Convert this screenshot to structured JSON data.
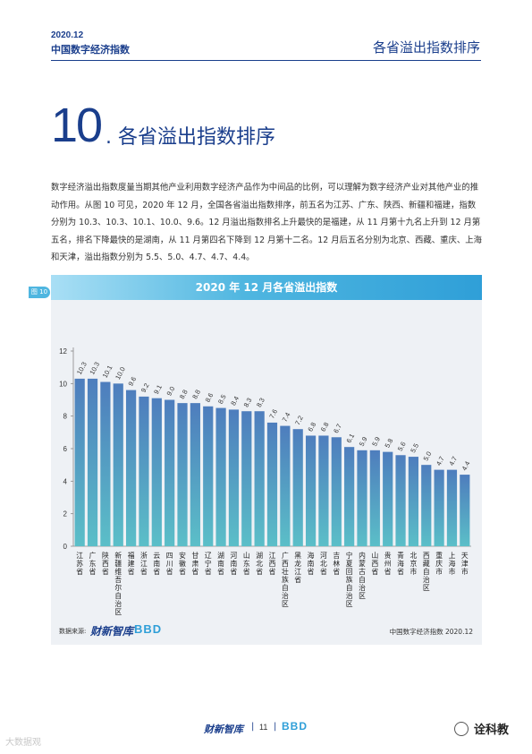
{
  "header": {
    "date": "2020.12",
    "report": "中国数字经济指数",
    "section": "各省溢出指数排序"
  },
  "title": {
    "number": "10",
    "text": ". 各省溢出指数排序"
  },
  "intro": "数字经济溢出指数度量当期其他产业利用数字经济产品作为中间品的比例，可以理解为数字经济产业对其他产业的推动作用。从图 10 可见，2020 年 12 月，全国各省溢出指数排序，前五名为江苏、广东、陕西、新疆和福建，指数分别为 10.3、10.3、10.1、10.0、9.6。12 月溢出指数排名上升最快的是福建，从 11 月第十九名上升到 12 月第五名，排名下降最快的是湖南，从 11 月第四名下降到 12 月第十二名。12 月后五名分别为北京、西藏、重庆、上海和天津，溢出指数分别为 5.5、5.0、4.7、4.7、4.4。",
  "figure": {
    "label": "图 10",
    "title": "2020 年 12 月各省溢出指数"
  },
  "chart_data": {
    "type": "bar",
    "title": "2020 年 12 月各省溢出指数",
    "categories": [
      "江苏省",
      "广东省",
      "陕西省",
      "新疆维吾尔自治区",
      "福建省",
      "浙江省",
      "云南省",
      "四川省",
      "安徽省",
      "甘肃省",
      "辽宁省",
      "湖南省",
      "河南省",
      "山东省",
      "湖北省",
      "江西省",
      "广西壮族自治区",
      "黑龙江省",
      "海南省",
      "河北省",
      "吉林省",
      "宁夏回族自治区",
      "内蒙古自治区",
      "山西省",
      "贵州省",
      "青海省",
      "北京市",
      "西藏自治区",
      "重庆市",
      "上海市",
      "天津市"
    ],
    "values": [
      10.3,
      10.3,
      10.1,
      10.0,
      9.6,
      9.2,
      9.1,
      9.0,
      8.8,
      8.8,
      8.6,
      8.5,
      8.4,
      8.3,
      8.3,
      7.6,
      7.4,
      7.2,
      6.8,
      6.8,
      6.7,
      6.1,
      5.9,
      5.9,
      5.8,
      5.6,
      5.5,
      5.0,
      4.7,
      4.7,
      4.4
    ],
    "value_labels": [
      "10.3",
      "10.3",
      "10.1",
      "10.0",
      "9.6",
      "9.2",
      "9.1",
      "9.0",
      "8.8",
      "8.8",
      "8.6",
      "8.5",
      "8.4",
      "8.3",
      "8.3",
      "7.6",
      "7.4",
      "7.2",
      "6.8",
      "6.8",
      "6.7",
      "6.1",
      "5.9",
      "5.9",
      "5.8",
      "5.6",
      "5.5",
      "5.0",
      "4.7",
      "4.7",
      "4.4"
    ],
    "yticks": [
      "0",
      "2",
      "4",
      "6",
      "8",
      "10",
      "12"
    ],
    "ylim": [
      0,
      12
    ],
    "xlabel": "",
    "ylabel": "",
    "grid": false,
    "colors": {
      "bar_top": "#4e7dbd",
      "bar_bottom": "#5bbfc8",
      "axis": "#888888"
    }
  },
  "source": {
    "label": "数据来源:",
    "logo1": "财新智库",
    "logo2": "BBD",
    "right": "中国数字经济指数 2020.12"
  },
  "footer": {
    "logo1": "财新智库",
    "sep": "|",
    "page": "11",
    "logo2": "BBD"
  },
  "watermark": {
    "left": "大数据观",
    "right": "诠科教"
  }
}
